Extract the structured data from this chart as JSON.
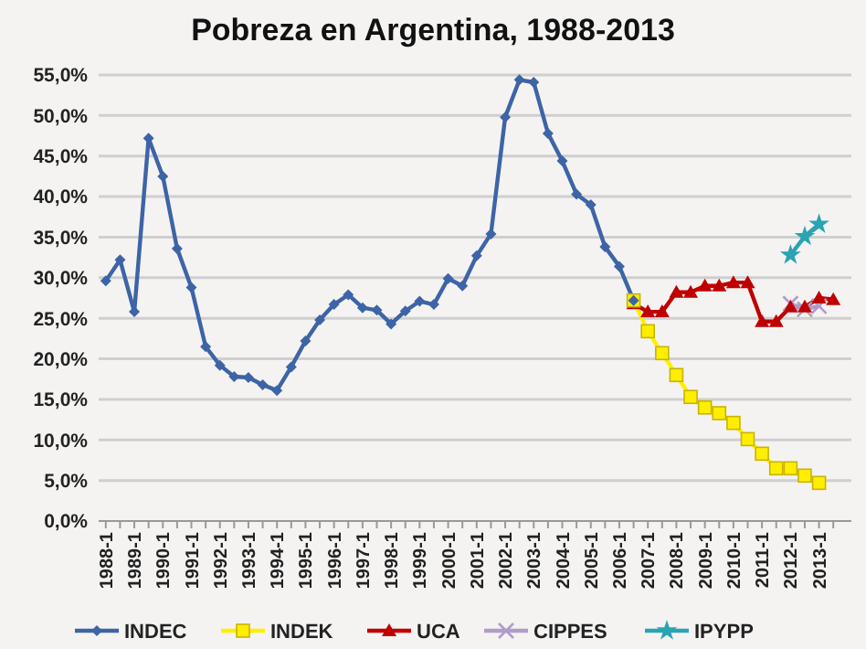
{
  "chart_data": {
    "type": "line",
    "title": "Pobreza en Argentina, 1988-2013",
    "categories": [
      "1988-1",
      null,
      "1989-1",
      null,
      "1990-1",
      null,
      "1991-1",
      null,
      "1992-1",
      null,
      "1993-1",
      null,
      "1994-1",
      null,
      "1995-1",
      null,
      "1996-1",
      null,
      "1997-1",
      null,
      "1998-1",
      null,
      "1999-1",
      null,
      "2000-1",
      null,
      "2001-1",
      null,
      "2002-1",
      null,
      "2003-1",
      null,
      "2004-1",
      null,
      "2005-1",
      null,
      "2006-1",
      null,
      "2007-1",
      null,
      "2008-1",
      null,
      "2009-1",
      null,
      "2010-1",
      null,
      "2011-1",
      null,
      "2012-1",
      null,
      "2013-1",
      null
    ],
    "series": [
      {
        "name": "INDEC",
        "color": "#3d64a6",
        "marker": "diamond",
        "values": [
          29.6,
          32.2,
          25.8,
          47.2,
          42.5,
          33.6,
          28.8,
          21.5,
          19.2,
          17.8,
          17.7,
          16.8,
          16.1,
          19.0,
          22.2,
          24.8,
          26.7,
          27.9,
          26.3,
          26.0,
          24.3,
          25.9,
          27.1,
          26.7,
          29.9,
          29.0,
          32.7,
          35.4,
          49.8,
          54.4,
          54.1,
          47.8,
          44.4,
          40.3,
          39.0,
          33.8,
          31.4,
          27.2,
          null,
          null,
          null,
          null,
          null,
          null,
          null,
          null,
          null,
          null,
          null,
          null,
          null,
          null
        ]
      },
      {
        "name": "INDEK",
        "color": "#ffee00",
        "marker": "square",
        "values": [
          null,
          null,
          null,
          null,
          null,
          null,
          null,
          null,
          null,
          null,
          null,
          null,
          null,
          null,
          null,
          null,
          null,
          null,
          null,
          null,
          null,
          null,
          null,
          null,
          null,
          null,
          null,
          null,
          null,
          null,
          null,
          null,
          null,
          null,
          null,
          null,
          null,
          27.2,
          23.4,
          20.7,
          18.0,
          15.3,
          14.0,
          13.3,
          12.1,
          10.1,
          8.3,
          6.5,
          6.5,
          5.6,
          4.7,
          null
        ]
      },
      {
        "name": "UCA",
        "color": "#c00000",
        "marker": "triangle",
        "values": [
          null,
          null,
          null,
          null,
          null,
          null,
          null,
          null,
          null,
          null,
          null,
          null,
          null,
          null,
          null,
          null,
          null,
          null,
          null,
          null,
          null,
          null,
          null,
          null,
          null,
          null,
          null,
          null,
          null,
          null,
          null,
          null,
          null,
          null,
          null,
          null,
          null,
          26.8,
          25.8,
          25.8,
          28.2,
          28.2,
          29.0,
          29.0,
          29.4,
          29.4,
          24.6,
          24.6,
          26.4,
          26.4,
          27.5,
          27.3
        ]
      },
      {
        "name": "CIPPES",
        "color": "#b09cc8",
        "marker": "cross",
        "values": [
          null,
          null,
          null,
          null,
          null,
          null,
          null,
          null,
          null,
          null,
          null,
          null,
          null,
          null,
          null,
          null,
          null,
          null,
          null,
          null,
          null,
          null,
          null,
          null,
          null,
          null,
          null,
          null,
          null,
          null,
          null,
          null,
          null,
          null,
          null,
          null,
          null,
          null,
          null,
          null,
          null,
          null,
          null,
          null,
          null,
          null,
          null,
          null,
          26.8,
          26.1,
          26.5,
          null
        ]
      },
      {
        "name": "IPYPP",
        "color": "#2aa3b3",
        "marker": "star",
        "values": [
          null,
          null,
          null,
          null,
          null,
          null,
          null,
          null,
          null,
          null,
          null,
          null,
          null,
          null,
          null,
          null,
          null,
          null,
          null,
          null,
          null,
          null,
          null,
          null,
          null,
          null,
          null,
          null,
          null,
          null,
          null,
          null,
          null,
          null,
          null,
          null,
          null,
          null,
          null,
          null,
          null,
          null,
          null,
          null,
          null,
          null,
          null,
          null,
          32.8,
          35.1,
          36.6,
          null
        ]
      }
    ],
    "ylim": [
      0,
      55
    ],
    "yticks": [
      {
        "value": 0,
        "label": "0,0%"
      },
      {
        "value": 5,
        "label": "5,0%"
      },
      {
        "value": 10,
        "label": "10,0%"
      },
      {
        "value": 15,
        "label": "15,0%"
      },
      {
        "value": 20,
        "label": "20,0%"
      },
      {
        "value": 25,
        "label": "25,0%"
      },
      {
        "value": 30,
        "label": "30,0%"
      },
      {
        "value": 35,
        "label": "35,0%"
      },
      {
        "value": 40,
        "label": "40,0%"
      },
      {
        "value": 45,
        "label": "45,0%"
      },
      {
        "value": 50,
        "label": "50,0%"
      },
      {
        "value": 55,
        "label": "55,0%"
      }
    ],
    "grid": "y",
    "legend": "bottom"
  }
}
